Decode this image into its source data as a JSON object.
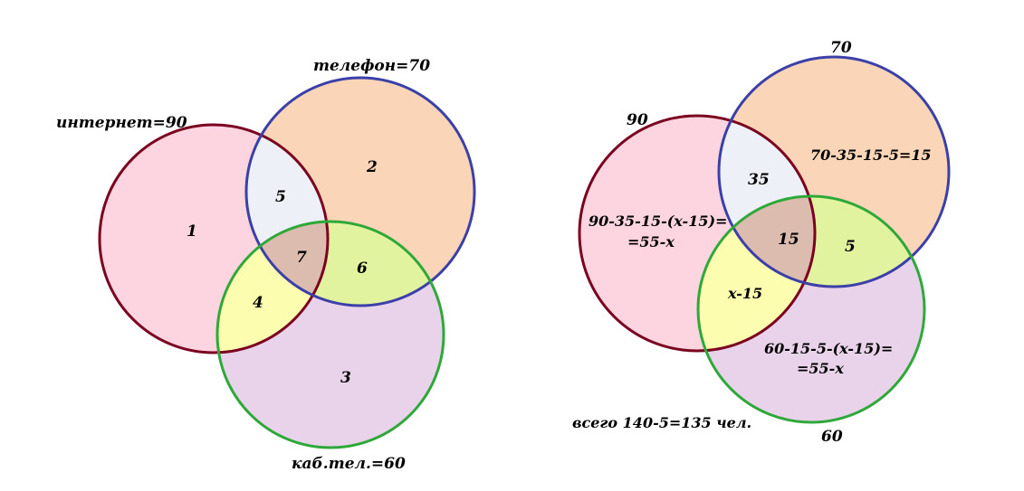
{
  "colors": {
    "internet_fill": "#fcd5e0",
    "internet_stroke": "#7a0020",
    "phone_fill": "#fbd5b8",
    "phone_stroke": "#3b3fa8",
    "cable_fill": "#e8d3ea",
    "cable_stroke": "#2fa83a",
    "internet_phone": "#edf0f7",
    "internet_cable": "#fdfdb0",
    "phone_cable": "#e2f3a0",
    "all_three": "#dbbcae"
  },
  "left_diagram": {
    "set_labels": {
      "internet": "интернет=90",
      "phone": "телефон=70",
      "cable": "каб.тел.=60"
    },
    "regions": {
      "internet_only": "1",
      "phone_only": "2",
      "cable_only": "3",
      "internet_cable": "4",
      "internet_phone": "5",
      "phone_cable": "6",
      "all_three": "7"
    }
  },
  "right_diagram": {
    "set_labels": {
      "internet": "90",
      "phone": "70",
      "cable": "60"
    },
    "regions": {
      "internet_only_line1": "90-35-15-(x-15)=",
      "internet_only_line2": "=55-x",
      "phone_only": "70-35-15-5=15",
      "cable_only_line1": "60-15-5-(x-15)=",
      "cable_only_line2": "=55-x",
      "internet_phone": "35",
      "all_three": "15",
      "phone_cable": "5",
      "internet_cable": "x-15"
    },
    "total": "всего 140-5=135  чел."
  }
}
